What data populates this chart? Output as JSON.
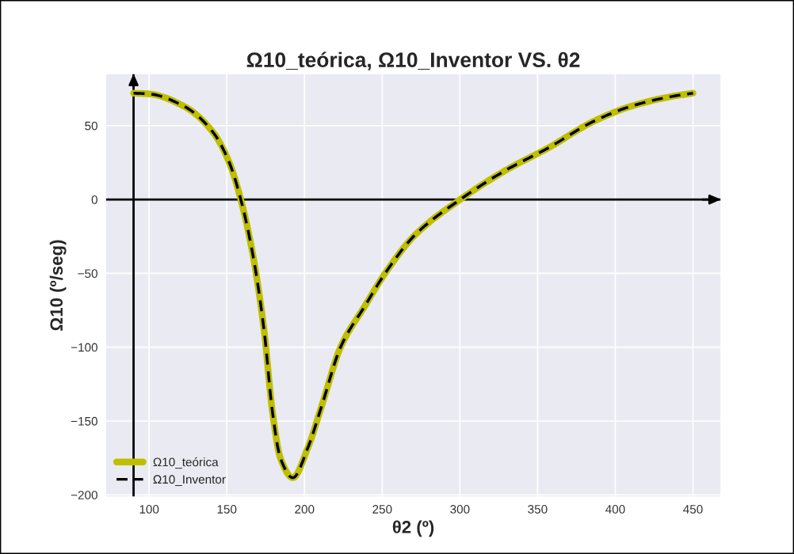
{
  "chart_data": {
    "type": "line",
    "title": "Ω10_teórica, Ω10_Inventor VS. θ2",
    "xlabel": "θ2 (º)",
    "ylabel": "Ω10 (º/seg)",
    "x": [
      90,
      100,
      123,
      140.8,
      151.3,
      159,
      167,
      174,
      179.4,
      184.6,
      192.5,
      202.2,
      211,
      223.3,
      238.9,
      252.5,
      271.2,
      300.5,
      329.5,
      357,
      386,
      411.5,
      437,
      450
    ],
    "series": [
      {
        "name": "Ω10_teórica",
        "color": "#bfbf00",
        "line_style": "solid",
        "values": [
          72,
          71.5,
          62.8,
          46,
          25.8,
          0,
          -38.8,
          -88.7,
          -144,
          -175.5,
          -188.4,
          -168,
          -140,
          -99.8,
          -72,
          -49,
          -23.9,
          0.2,
          19.8,
          35,
          52.9,
          63.6,
          69.9,
          72
        ]
      },
      {
        "name": "Ω10_Inventor",
        "color": "#000000",
        "line_style": "dashed",
        "values": [
          72,
          71.5,
          62.8,
          46,
          25.8,
          0,
          -38.8,
          -88.7,
          -144,
          -175.5,
          -188.4,
          -168,
          -140,
          -99.8,
          -72,
          -49,
          -23.9,
          0.2,
          19.8,
          35,
          52.9,
          63.6,
          69.9,
          72
        ]
      }
    ],
    "xlim": [
      72,
      468
    ],
    "xticks": [
      100,
      150,
      200,
      250,
      300,
      350,
      400,
      450
    ],
    "ylim": [
      -201.4,
      85.2
    ],
    "yticks": [
      -200,
      -150,
      -100,
      -50,
      0,
      50
    ],
    "ref_lines": [
      {
        "axis": "x",
        "value": 90,
        "color": "#000000"
      },
      {
        "axis": "y",
        "value": 0,
        "color": "#000000"
      }
    ],
    "grid": true,
    "legend": "bottom left",
    "marker": "none"
  }
}
